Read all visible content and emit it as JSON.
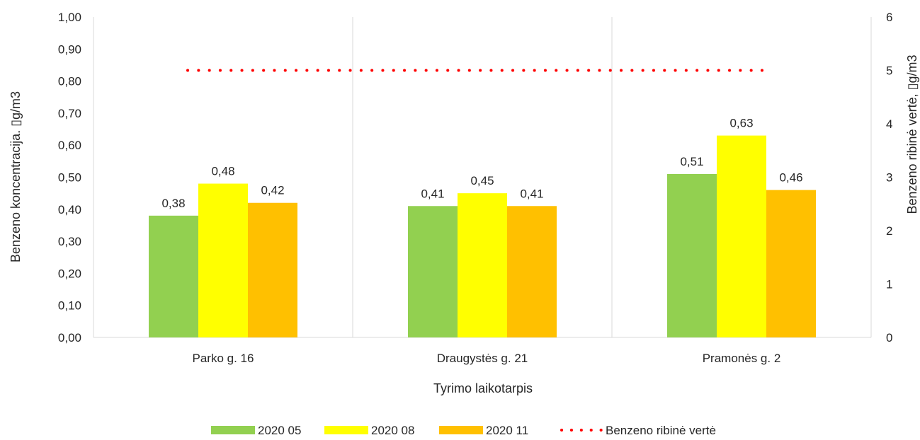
{
  "chart_data": {
    "type": "bar",
    "categories": [
      "Parko g. 16",
      "Draugystės g. 21",
      "Pramonės g. 2"
    ],
    "series": [
      {
        "name": "2020 05",
        "values": [
          0.38,
          0.41,
          0.51
        ],
        "color": "#92D050",
        "labels": [
          "0,38",
          "0,41",
          "0,51"
        ]
      },
      {
        "name": "2020 08",
        "values": [
          0.48,
          0.45,
          0.63
        ],
        "color": "#FFFF00",
        "labels": [
          "0,48",
          "0,45",
          "0,63"
        ]
      },
      {
        "name": "2020 11",
        "values": [
          0.42,
          0.41,
          0.46
        ],
        "color": "#FFC000",
        "labels": [
          "0,42",
          "0,41",
          "0,46"
        ]
      }
    ],
    "limit_line": {
      "name": "Benzeno ribinė vertė",
      "value": 5,
      "axis": "right",
      "color": "#FF0000",
      "style": "dotted"
    },
    "xlabel": "Tyrimo laikotarpis",
    "ylabel": "Benzeno koncentracija. ▯g/m3",
    "y2label": "Benzeno ribinė vertė, ▯g/m3",
    "ylim": [
      0,
      1.0
    ],
    "y2lim": [
      0,
      6
    ],
    "yticks": [
      "0,00",
      "0,10",
      "0,20",
      "0,30",
      "0,40",
      "0,50",
      "0,60",
      "0,70",
      "0,80",
      "0,90",
      "1,00"
    ],
    "y2ticks": [
      "0",
      "1",
      "2",
      "3",
      "4",
      "5",
      "6"
    ],
    "grid": "vertical category separators",
    "legend_position": "bottom"
  }
}
